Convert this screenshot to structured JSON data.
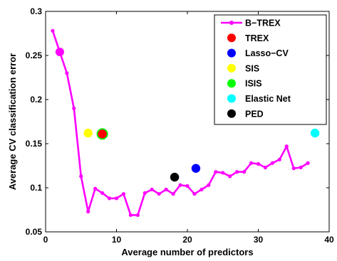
{
  "chart_data": {
    "type": "line",
    "title": "",
    "xlabel": "Average number of predictors",
    "ylabel": "Average CV classification error",
    "xlim": [
      0,
      40
    ],
    "ylim": [
      0.05,
      0.3
    ],
    "x_ticks": [
      "0",
      "10",
      "20",
      "30",
      "40"
    ],
    "y_ticks": [
      "0.05",
      "0.1",
      "0.15",
      "0.2",
      "0.25",
      "0.3"
    ],
    "grid": false,
    "legend_position": "top-right",
    "series": [
      {
        "name": "B−TREX",
        "kind": "line",
        "color": "#ff00ff",
        "highlight_index": 1,
        "x": [
          1,
          2,
          3,
          4,
          5,
          6,
          7,
          8,
          9,
          10,
          11,
          12,
          13,
          14,
          15,
          16,
          17,
          18,
          19,
          20,
          21,
          22,
          23,
          24,
          25,
          26,
          27,
          28,
          29,
          30,
          31,
          32,
          33,
          34,
          35,
          36,
          37
        ],
        "y": [
          0.278,
          0.254,
          0.23,
          0.19,
          0.113,
          0.073,
          0.099,
          0.094,
          0.088,
          0.088,
          0.093,
          0.069,
          0.069,
          0.094,
          0.098,
          0.093,
          0.098,
          0.093,
          0.103,
          0.102,
          0.093,
          0.098,
          0.103,
          0.118,
          0.117,
          0.113,
          0.118,
          0.118,
          0.128,
          0.127,
          0.123,
          0.128,
          0.132,
          0.147,
          0.122,
          0.123,
          0.128
        ]
      },
      {
        "name": "TREX",
        "kind": "point",
        "color": "#ff0000",
        "x": [
          8
        ],
        "y": [
          0.161
        ]
      },
      {
        "name": "Lasso−CV",
        "kind": "point",
        "color": "#0000ff",
        "x": [
          21.2
        ],
        "y": [
          0.122
        ]
      },
      {
        "name": "SIS",
        "kind": "point",
        "color": "#ffff00",
        "x": [
          6
        ],
        "y": [
          0.162
        ]
      },
      {
        "name": "ISIS",
        "kind": "point",
        "color": "#00ff00",
        "x": [
          8
        ],
        "y": [
          0.161
        ]
      },
      {
        "name": "Elastic Net",
        "kind": "point",
        "color": "#00ffff",
        "x": [
          38
        ],
        "y": [
          0.162
        ]
      },
      {
        "name": "PED",
        "kind": "point",
        "color": "#000000",
        "x": [
          18.2
        ],
        "y": [
          0.112
        ]
      }
    ]
  }
}
